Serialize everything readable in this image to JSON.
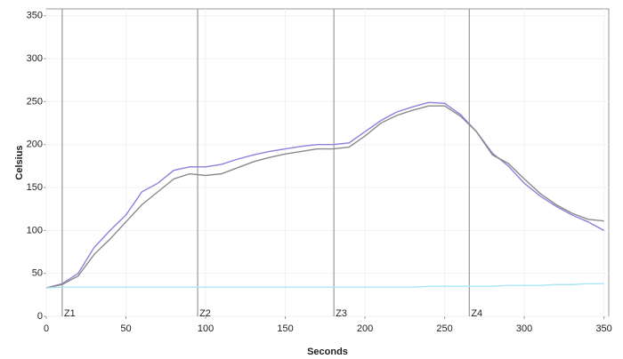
{
  "chart_data": {
    "type": "line",
    "x_label": "Seconds",
    "y_label": "Celsius",
    "x": [
      0,
      10,
      20,
      30,
      40,
      50,
      60,
      70,
      80,
      90,
      100,
      110,
      120,
      130,
      140,
      150,
      160,
      170,
      180,
      190,
      200,
      210,
      220,
      230,
      240,
      250,
      260,
      270,
      280,
      290,
      300,
      310,
      320,
      330,
      340,
      350
    ],
    "series": [
      {
        "color": "#8c82dc",
        "values": [
          33,
          38,
          50,
          80,
          100,
          118,
          145,
          155,
          170,
          174,
          174,
          177,
          183,
          188,
          192,
          195,
          198,
          200,
          200,
          202,
          215,
          228,
          238,
          244,
          249,
          248,
          235,
          215,
          190,
          175,
          155,
          140,
          128,
          118,
          110,
          100
        ]
      },
      {
        "color": "#8a8a8a",
        "values": [
          33,
          37,
          47,
          72,
          90,
          110,
          130,
          145,
          160,
          166,
          164,
          166,
          173,
          180,
          185,
          189,
          192,
          195,
          195,
          197,
          210,
          225,
          234,
          240,
          245,
          245,
          233,
          215,
          188,
          178,
          160,
          143,
          130,
          120,
          113,
          111
        ]
      },
      {
        "color": "#a8e6f2",
        "values": [
          33,
          34,
          34,
          34,
          34,
          34,
          34,
          34,
          34,
          34,
          34,
          34,
          34,
          34,
          34,
          34,
          34,
          34,
          34,
          34,
          34,
          34,
          34,
          34,
          35,
          35,
          35,
          35,
          35,
          36,
          36,
          36,
          37,
          37,
          38,
          38
        ]
      }
    ],
    "zones": [
      {
        "label": "Z1",
        "x": 10
      },
      {
        "label": "Z2",
        "x": 95
      },
      {
        "label": "Z3",
        "x": 180.5
      },
      {
        "label": "Z4",
        "x": 265.5
      }
    ],
    "xlim": [
      0,
      353
    ],
    "ylim": [
      0,
      358
    ],
    "xticks": [
      0,
      50,
      100,
      150,
      200,
      250,
      300,
      350
    ],
    "yticks": [
      0,
      50,
      100,
      150,
      200,
      250,
      300,
      350
    ],
    "grid": true
  }
}
